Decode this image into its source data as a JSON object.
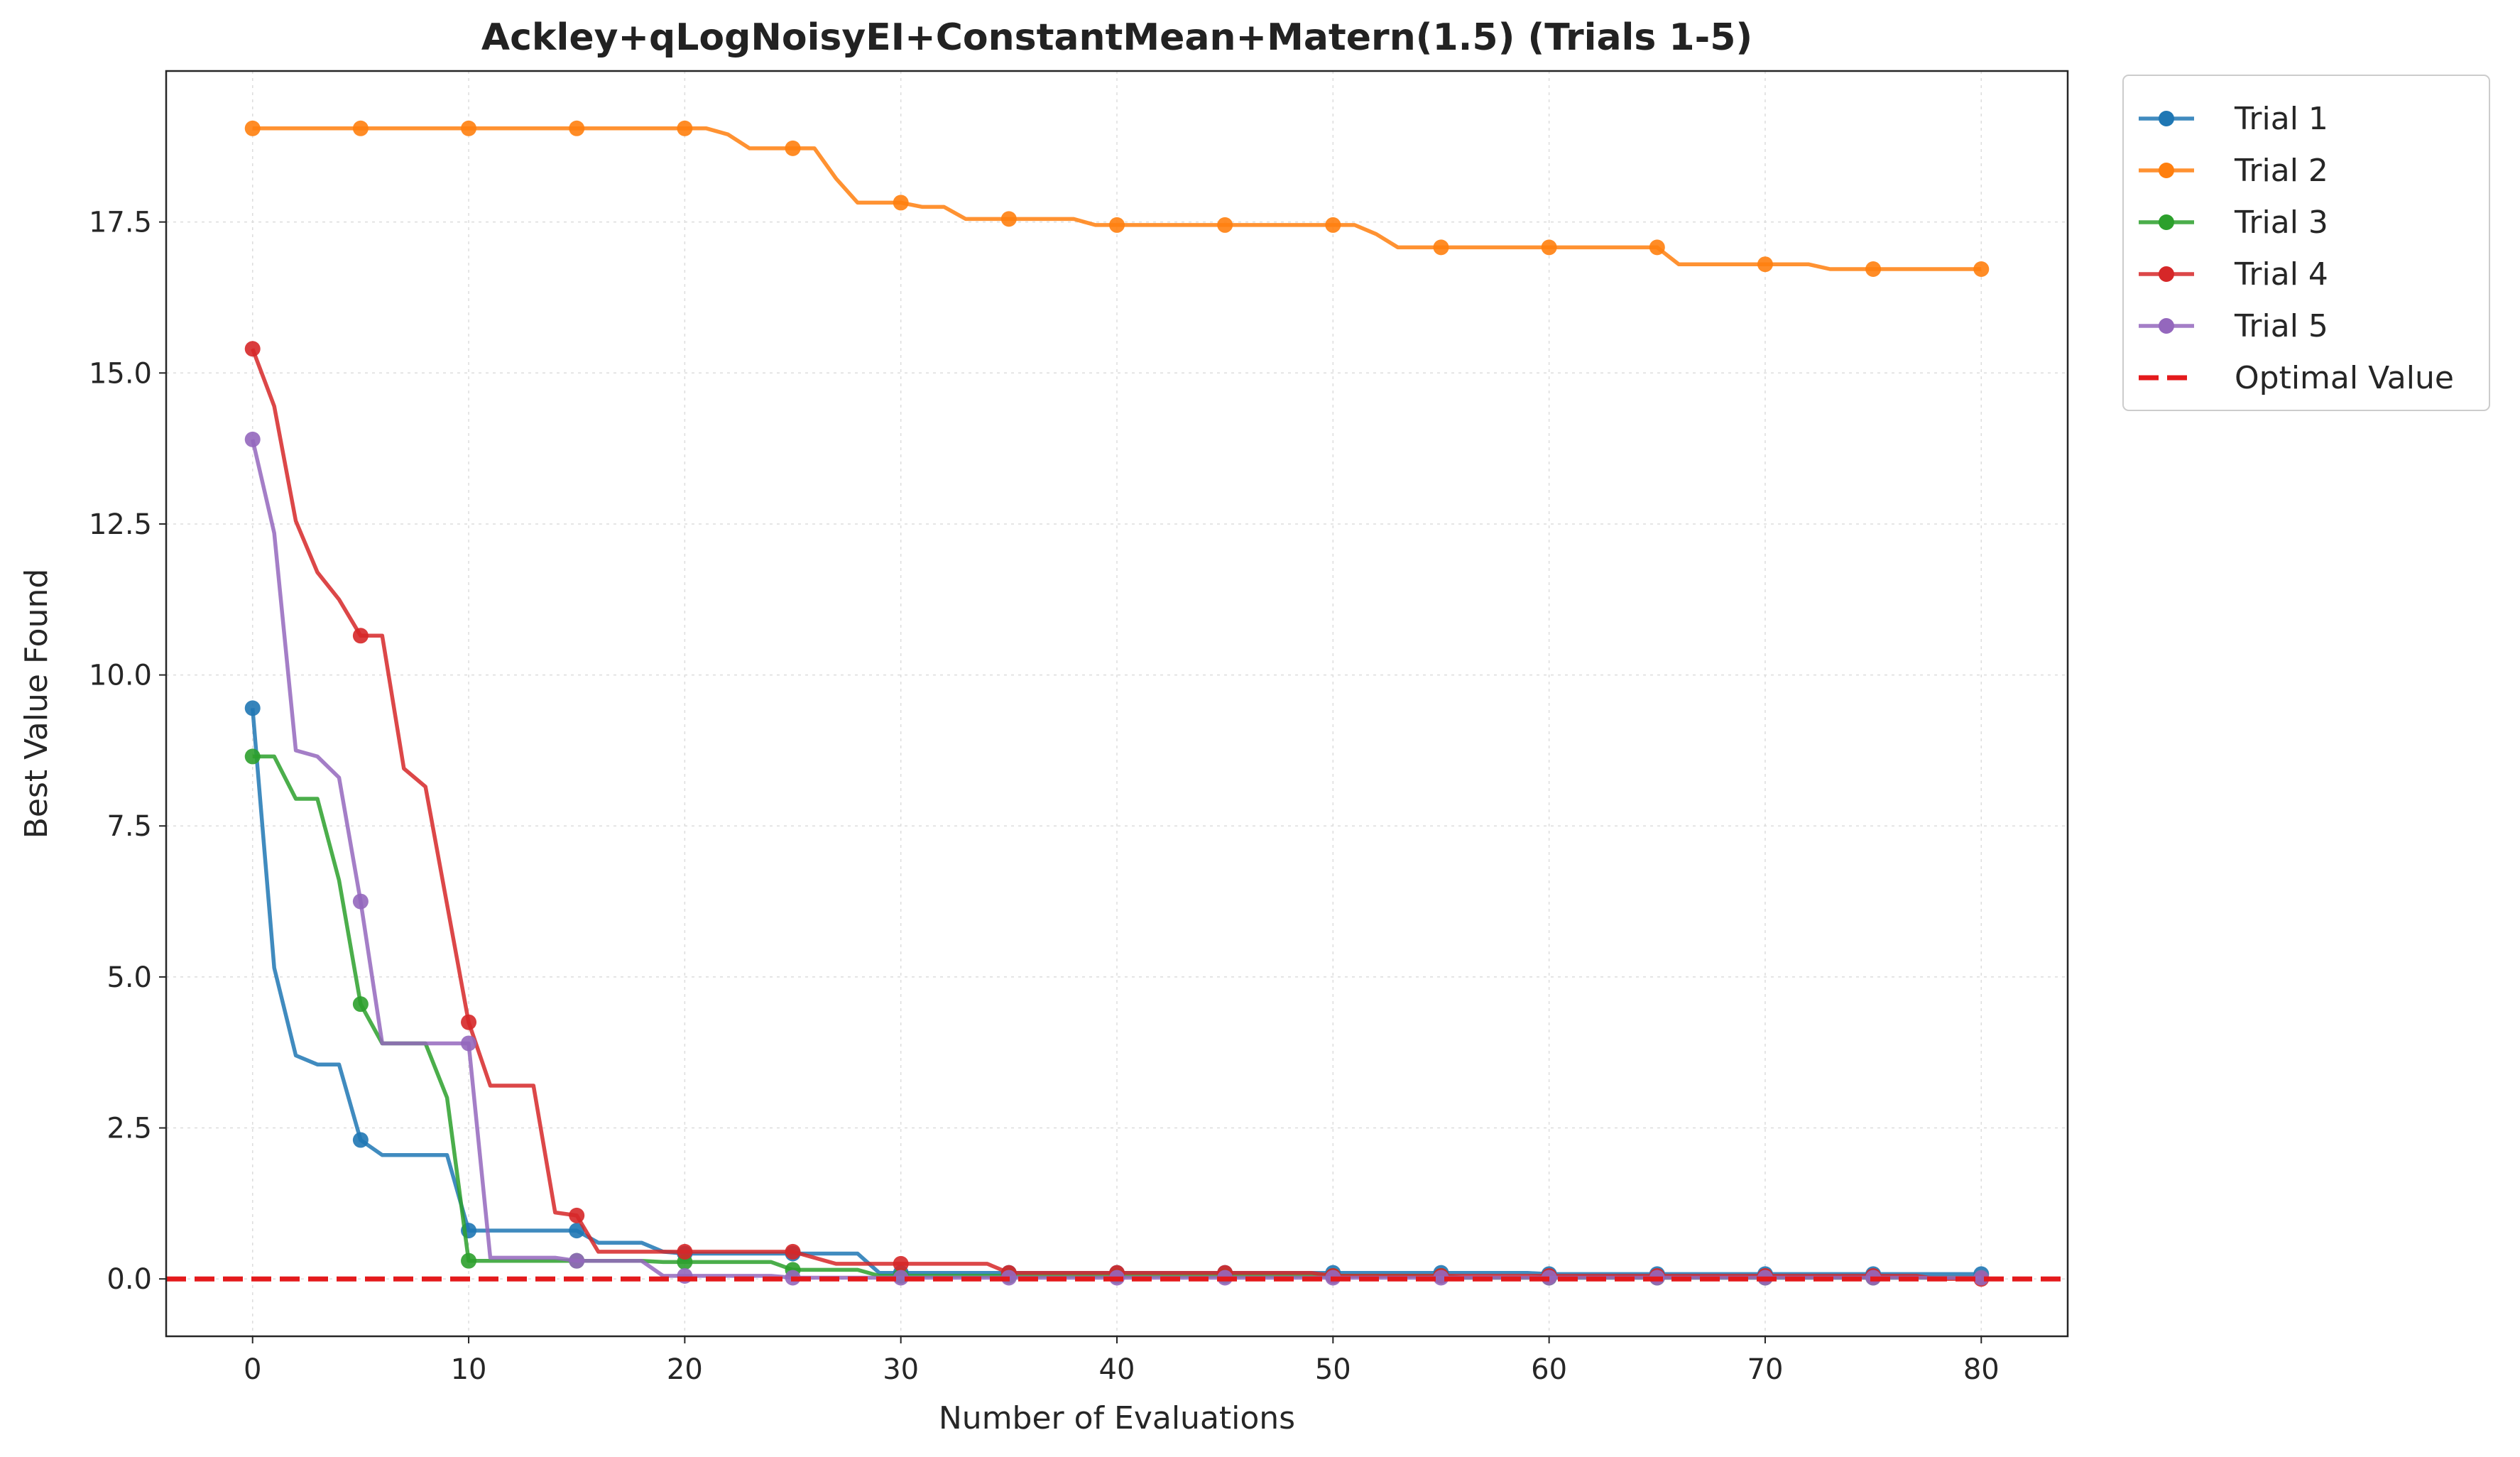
{
  "chart_data": {
    "type": "line",
    "title": "Ackley+qLogNoisyEI+ConstantMean+Matern(1.5) (Trials 1-5)",
    "xlabel": "Number of Evaluations",
    "ylabel": "Best Value Found",
    "xlim": [
      -4,
      84
    ],
    "ylim": [
      -0.95,
      20.0
    ],
    "xticks": [
      0,
      10,
      20,
      30,
      40,
      50,
      60,
      70,
      80
    ],
    "xtick_labels": [
      "0",
      "10",
      "20",
      "30",
      "40",
      "50",
      "60",
      "70",
      "80"
    ],
    "yticks": [
      0,
      2.5,
      5,
      7.5,
      10,
      12.5,
      15,
      17.5
    ],
    "ytick_labels": [
      "0.0",
      "2.5",
      "5.0",
      "7.5",
      "10.0",
      "12.5",
      "15.0",
      "17.5"
    ],
    "grid": true,
    "legend_position": "outside-top-right",
    "reference_line": {
      "name": "Optimal Value",
      "y": 0,
      "color": "#e41a1c",
      "style": "dashed"
    },
    "series": [
      {
        "name": "Trial 1",
        "color": "#1f77b4",
        "marker_every": 5,
        "x": [
          0,
          1,
          2,
          3,
          4,
          5,
          6,
          7,
          8,
          9,
          10,
          11,
          12,
          13,
          14,
          15,
          16,
          17,
          18,
          19,
          20,
          21,
          22,
          23,
          24,
          25,
          26,
          27,
          28,
          29,
          30,
          31,
          32,
          33,
          34,
          35,
          36,
          37,
          38,
          39,
          40,
          41,
          42,
          43,
          44,
          45,
          46,
          47,
          48,
          49,
          50,
          51,
          52,
          53,
          54,
          55,
          56,
          57,
          58,
          59,
          60,
          61,
          62,
          63,
          64,
          65,
          66,
          67,
          68,
          69,
          70,
          71,
          72,
          73,
          74,
          75,
          76,
          77,
          78,
          79,
          80
        ],
        "y": [
          9.45,
          5.15,
          3.7,
          3.55,
          3.55,
          2.3,
          2.05,
          2.05,
          2.05,
          2.05,
          0.8,
          0.8,
          0.8,
          0.8,
          0.8,
          0.8,
          0.6,
          0.6,
          0.6,
          0.45,
          0.42,
          0.42,
          0.42,
          0.42,
          0.42,
          0.42,
          0.42,
          0.42,
          0.42,
          0.1,
          0.1,
          0.1,
          0.1,
          0.1,
          0.1,
          0.1,
          0.1,
          0.1,
          0.1,
          0.1,
          0.1,
          0.1,
          0.1,
          0.1,
          0.1,
          0.1,
          0.1,
          0.1,
          0.1,
          0.1,
          0.1,
          0.1,
          0.1,
          0.1,
          0.1,
          0.1,
          0.1,
          0.1,
          0.1,
          0.1,
          0.08,
          0.08,
          0.08,
          0.08,
          0.08,
          0.08,
          0.08,
          0.08,
          0.08,
          0.08,
          0.08,
          0.08,
          0.08,
          0.08,
          0.08,
          0.08,
          0.08,
          0.08,
          0.08,
          0.08,
          0.08
        ]
      },
      {
        "name": "Trial 2",
        "color": "#ff7f0e",
        "marker_every": 5,
        "x": [
          0,
          1,
          2,
          3,
          4,
          5,
          6,
          7,
          8,
          9,
          10,
          11,
          12,
          13,
          14,
          15,
          16,
          17,
          18,
          19,
          20,
          21,
          22,
          23,
          24,
          25,
          26,
          27,
          28,
          29,
          30,
          31,
          32,
          33,
          34,
          35,
          36,
          37,
          38,
          39,
          40,
          41,
          42,
          43,
          44,
          45,
          46,
          47,
          48,
          49,
          50,
          51,
          52,
          53,
          54,
          55,
          56,
          57,
          58,
          59,
          60,
          61,
          62,
          63,
          64,
          65,
          66,
          67,
          68,
          69,
          70,
          71,
          72,
          73,
          74,
          75,
          76,
          77,
          78,
          79,
          80
        ],
        "y": [
          19.05,
          19.05,
          19.05,
          19.05,
          19.05,
          19.05,
          19.05,
          19.05,
          19.05,
          19.05,
          19.05,
          19.05,
          19.05,
          19.05,
          19.05,
          19.05,
          19.05,
          19.05,
          19.05,
          19.05,
          19.05,
          19.05,
          18.95,
          18.72,
          18.72,
          18.72,
          18.72,
          18.22,
          17.82,
          17.82,
          17.82,
          17.75,
          17.75,
          17.55,
          17.55,
          17.55,
          17.55,
          17.55,
          17.55,
          17.45,
          17.45,
          17.45,
          17.45,
          17.45,
          17.45,
          17.45,
          17.45,
          17.45,
          17.45,
          17.45,
          17.45,
          17.45,
          17.3,
          17.08,
          17.08,
          17.08,
          17.08,
          17.08,
          17.08,
          17.08,
          17.08,
          17.08,
          17.08,
          17.08,
          17.08,
          17.08,
          16.8,
          16.8,
          16.8,
          16.8,
          16.8,
          16.8,
          16.8,
          16.72,
          16.72,
          16.72,
          16.72,
          16.72,
          16.72,
          16.72,
          16.72
        ]
      },
      {
        "name": "Trial 3",
        "color": "#2ca02c",
        "marker_every": 5,
        "x": [
          0,
          1,
          2,
          3,
          4,
          5,
          6,
          7,
          8,
          9,
          10,
          11,
          12,
          13,
          14,
          15,
          16,
          17,
          18,
          19,
          20,
          21,
          22,
          23,
          24,
          25,
          26,
          27,
          28,
          29,
          30,
          31,
          32,
          33,
          34,
          35,
          36,
          37,
          38,
          39,
          40,
          41,
          42,
          43,
          44,
          45,
          46,
          47,
          48,
          49,
          50,
          51,
          52,
          53,
          54,
          55,
          56,
          57,
          58,
          59,
          60,
          61,
          62,
          63,
          64,
          65,
          66,
          67,
          68,
          69,
          70,
          71,
          72,
          73,
          74,
          75,
          76,
          77,
          78,
          79,
          80
        ],
        "y": [
          8.65,
          8.65,
          7.95,
          7.95,
          6.6,
          4.55,
          3.9,
          3.9,
          3.9,
          3.0,
          0.3,
          0.3,
          0.3,
          0.3,
          0.3,
          0.3,
          0.3,
          0.3,
          0.3,
          0.28,
          0.28,
          0.28,
          0.28,
          0.28,
          0.28,
          0.15,
          0.15,
          0.15,
          0.15,
          0.05,
          0.05,
          0.05,
          0.05,
          0.05,
          0.05,
          0.05,
          0.05,
          0.05,
          0.05,
          0.05,
          0.05,
          0.05,
          0.05,
          0.05,
          0.05,
          0.05,
          0.05,
          0.05,
          0.05,
          0.05,
          0.05,
          0.05,
          0.05,
          0.05,
          0.05,
          0.05,
          0.02,
          0.02,
          0.02,
          0.02,
          0.02,
          0.02,
          0.02,
          0.02,
          0.02,
          0.02,
          0.02,
          0.02,
          0.02,
          0.02,
          0.02,
          0.02,
          0.02,
          0.02,
          0.02,
          0.02,
          0.02,
          0.02,
          0.02,
          0.02,
          0.02
        ]
      },
      {
        "name": "Trial 4",
        "color": "#d62728",
        "marker_every": 5,
        "x": [
          0,
          1,
          2,
          3,
          4,
          5,
          6,
          7,
          8,
          9,
          10,
          11,
          12,
          13,
          14,
          15,
          16,
          17,
          18,
          19,
          20,
          21,
          22,
          23,
          24,
          25,
          26,
          27,
          28,
          29,
          30,
          31,
          32,
          33,
          34,
          35,
          36,
          37,
          38,
          39,
          40,
          41,
          42,
          43,
          44,
          45,
          46,
          47,
          48,
          49,
          50,
          51,
          52,
          53,
          54,
          55,
          56,
          57,
          58,
          59,
          60,
          61,
          62,
          63,
          64,
          65,
          66,
          67,
          68,
          69,
          70,
          71,
          72,
          73,
          74,
          75,
          76,
          77,
          78,
          79,
          80
        ],
        "y": [
          15.4,
          14.45,
          12.55,
          11.7,
          11.25,
          10.65,
          10.65,
          8.45,
          8.15,
          6.2,
          4.25,
          3.2,
          3.2,
          3.2,
          1.1,
          1.05,
          0.45,
          0.45,
          0.45,
          0.45,
          0.45,
          0.45,
          0.45,
          0.45,
          0.45,
          0.45,
          0.35,
          0.25,
          0.25,
          0.25,
          0.25,
          0.25,
          0.25,
          0.25,
          0.25,
          0.1,
          0.1,
          0.1,
          0.1,
          0.1,
          0.1,
          0.1,
          0.1,
          0.1,
          0.1,
          0.1,
          0.1,
          0.1,
          0.1,
          0.1,
          0.05,
          0.05,
          0.05,
          0.05,
          0.05,
          0.05,
          0.05,
          0.05,
          0.05,
          0.05,
          0.05,
          0.05,
          0.05,
          0.05,
          0.05,
          0.05,
          0.05,
          0.05,
          0.05,
          0.05,
          0.05,
          0.05,
          0.05,
          0.05,
          0.05,
          0.05,
          0.05,
          0.05,
          0.0,
          0.0,
          0.0
        ]
      },
      {
        "name": "Trial 5",
        "color": "#9467bd",
        "marker_every": 5,
        "x": [
          0,
          1,
          2,
          3,
          4,
          5,
          6,
          7,
          8,
          9,
          10,
          11,
          12,
          13,
          14,
          15,
          16,
          17,
          18,
          19,
          20,
          21,
          22,
          23,
          24,
          25,
          26,
          27,
          28,
          29,
          30,
          31,
          32,
          33,
          34,
          35,
          36,
          37,
          38,
          39,
          40,
          41,
          42,
          43,
          44,
          45,
          46,
          47,
          48,
          49,
          50,
          51,
          52,
          53,
          54,
          55,
          56,
          57,
          58,
          59,
          60,
          61,
          62,
          63,
          64,
          65,
          66,
          67,
          68,
          69,
          70,
          71,
          72,
          73,
          74,
          75,
          76,
          77,
          78,
          79,
          80
        ],
        "y": [
          13.9,
          12.35,
          8.75,
          8.65,
          8.3,
          6.25,
          3.9,
          3.9,
          3.9,
          3.9,
          3.9,
          0.35,
          0.35,
          0.35,
          0.35,
          0.3,
          0.3,
          0.3,
          0.3,
          0.05,
          0.05,
          0.05,
          0.05,
          0.05,
          0.05,
          0.02,
          0.02,
          0.02,
          0.02,
          0.02,
          0.02,
          0.02,
          0.02,
          0.02,
          0.02,
          0.02,
          0.02,
          0.02,
          0.02,
          0.02,
          0.02,
          0.02,
          0.02,
          0.02,
          0.02,
          0.02,
          0.02,
          0.02,
          0.02,
          0.02,
          0.02,
          0.02,
          0.02,
          0.02,
          0.02,
          0.02,
          0.02,
          0.02,
          0.02,
          0.02,
          0.02,
          0.02,
          0.02,
          0.02,
          0.02,
          0.02,
          0.02,
          0.02,
          0.02,
          0.02,
          0.02,
          0.02,
          0.02,
          0.02,
          0.02,
          0.02,
          0.02,
          0.02,
          0.02,
          0.02,
          0.02
        ]
      }
    ]
  }
}
